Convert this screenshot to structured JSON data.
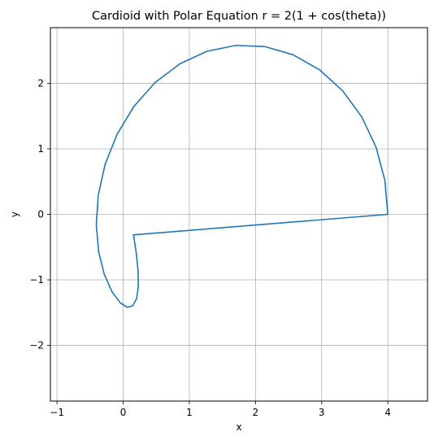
{
  "chart_data": {
    "type": "line",
    "title": "Cardioid with Polar Equation r = 2(1 + cos(theta))",
    "xlabel": "x",
    "ylabel": "y",
    "xlim": [
      -1.1,
      4.6
    ],
    "ylim": [
      -2.85,
      2.85
    ],
    "x_ticks": [
      -1,
      0,
      1,
      2,
      3,
      4
    ],
    "x_tick_labels": [
      "−1",
      "0",
      "1",
      "2",
      "3",
      "4"
    ],
    "y_ticks": [
      -2,
      -1,
      0,
      1,
      2
    ],
    "y_tick_labels": [
      "−2",
      "−1",
      "0",
      "1",
      "2"
    ],
    "grid": true,
    "series": [
      {
        "color": "#1f77b4",
        "points": [
          [
            4.0,
            0.0
          ],
          [
            3.955,
            0.522
          ],
          [
            3.823,
            1.024
          ],
          [
            3.608,
            1.485
          ],
          [
            3.319,
            1.885
          ],
          [
            2.969,
            2.206
          ],
          [
            2.571,
            2.435
          ],
          [
            2.143,
            2.561
          ],
          [
            1.703,
            2.58
          ],
          [
            1.268,
            2.49
          ],
          [
            0.856,
            2.297
          ],
          [
            0.482,
            2.012
          ],
          [
            0.163,
            1.648
          ],
          [
            -0.091,
            1.224
          ],
          [
            -0.273,
            0.764
          ],
          [
            -0.377,
            0.292
          ],
          [
            -0.406,
            -0.163
          ],
          [
            -0.37,
            -0.574
          ],
          [
            -0.285,
            -0.918
          ],
          [
            -0.169,
            -1.18
          ],
          [
            -0.046,
            -1.348
          ],
          [
            0.062,
            -1.419
          ],
          [
            0.146,
            -1.395
          ],
          [
            0.204,
            -1.284
          ],
          [
            0.229,
            -1.1
          ],
          [
            0.225,
            -0.861
          ],
          [
            0.198,
            -0.589
          ],
          [
            0.156,
            -0.313
          ]
        ]
      }
    ]
  }
}
